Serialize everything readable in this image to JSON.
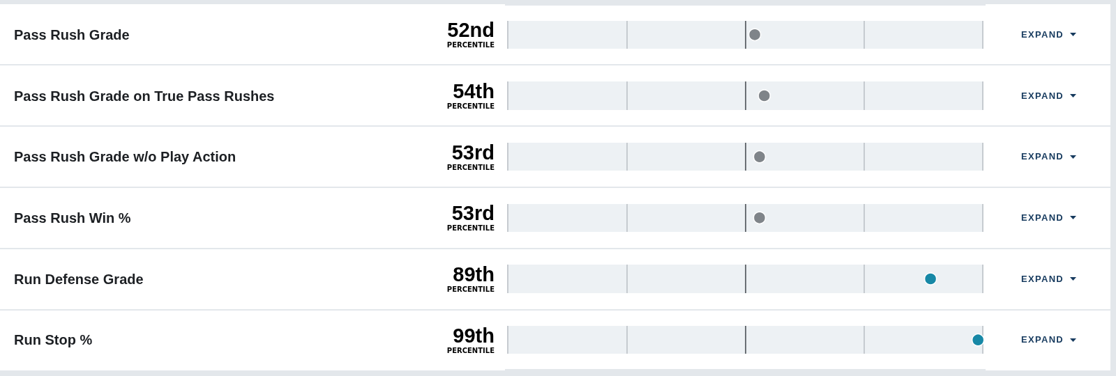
{
  "chart_data": {
    "type": "scatter",
    "orientation": "horizontal",
    "categories": [
      "Pass Rush Grade",
      "Pass Rush Grade on True Pass Rushes",
      "Pass Rush Grade w/o Play Action",
      "Pass Rush Win %",
      "Run Defense Grade",
      "Run Stop %"
    ],
    "values": [
      52,
      54,
      53,
      53,
      89,
      99
    ],
    "colors": [
      "#7f8489",
      "#7f8489",
      "#7f8489",
      "#7f8489",
      "#1788a6",
      "#1788a6"
    ],
    "value_labels": [
      "52nd\nPERCENTILE",
      "54th\nPERCENTILE",
      "53rd\nPERCENTILE",
      "53rd\nPERCENTILE",
      "89th\nPERCENTILE",
      "99th\nPERCENTILE"
    ],
    "xlim": [
      0,
      100
    ],
    "tick_labels": "y",
    "marker": "circle",
    "bands": [
      {
        "axis": "x",
        "from": 0,
        "to": 100,
        "color": "#edf1f4"
      }
    ],
    "ref_lines": [
      {
        "axis": "x",
        "value": 0,
        "color": "#c6cbd0"
      },
      {
        "axis": "x",
        "value": 25,
        "color": "#c6cbd0"
      },
      {
        "axis": "x",
        "value": 50,
        "color": "#6b7075"
      },
      {
        "axis": "x",
        "value": 75,
        "color": "#c6cbd0"
      },
      {
        "axis": "x",
        "value": 100,
        "color": "#c6cbd0"
      }
    ],
    "annotations": [
      "EXPAND",
      "EXPAND",
      "EXPAND",
      "EXPAND",
      "EXPAND",
      "EXPAND"
    ]
  }
}
